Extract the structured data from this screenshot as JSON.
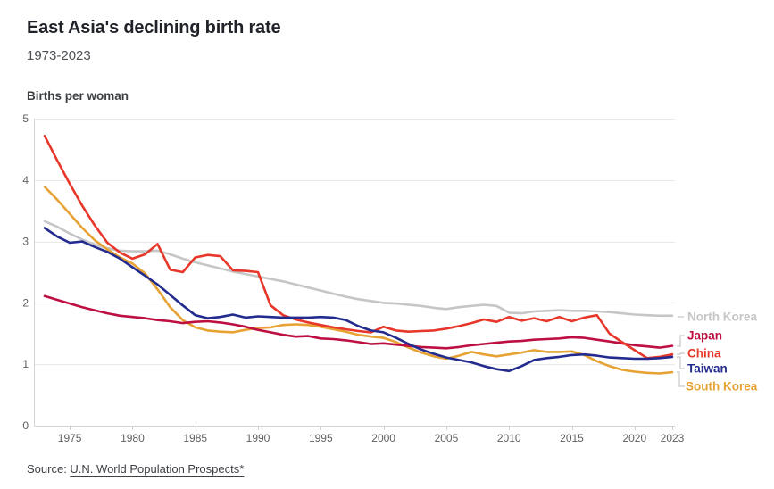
{
  "header": {
    "title": "East Asia's declining birth rate",
    "subtitle": "1973-2023"
  },
  "footer": {
    "source_prefix": "Source: ",
    "source_link": "U.N. World Population Prospects*"
  },
  "chart_data": {
    "type": "line",
    "title": "East Asia's declining birth rate",
    "subtitle": "1973-2023",
    "ylabel": "Births per woman",
    "xlabel": "",
    "xlim": [
      1973,
      2023
    ],
    "ylim": [
      0,
      5
    ],
    "y_ticks": [
      0,
      1,
      2,
      3,
      4,
      5
    ],
    "x_ticks": [
      1975,
      1980,
      1985,
      1990,
      1995,
      2000,
      2005,
      2010,
      2015,
      2020,
      2023
    ],
    "grid": "horizontal",
    "legend_position": "right-of-line-ends",
    "colors": {
      "grid": "#e9e9e9",
      "axis": "#d2d2d2",
      "tick_text": "#616161",
      "leader": "#c9c9c9"
    },
    "x": [
      1973,
      1974,
      1975,
      1976,
      1977,
      1978,
      1979,
      1980,
      1981,
      1982,
      1983,
      1984,
      1985,
      1986,
      1987,
      1988,
      1989,
      1990,
      1991,
      1992,
      1993,
      1994,
      1995,
      1996,
      1997,
      1998,
      1999,
      2000,
      2001,
      2002,
      2003,
      2004,
      2005,
      2006,
      2007,
      2008,
      2009,
      2010,
      2011,
      2012,
      2013,
      2014,
      2015,
      2016,
      2017,
      2018,
      2019,
      2020,
      2021,
      2022,
      2023
    ],
    "series": [
      {
        "name": "North Korea",
        "color": "#c6c6c6",
        "values": [
          3.33,
          3.24,
          3.13,
          3.03,
          2.95,
          2.89,
          2.85,
          2.84,
          2.84,
          2.85,
          2.79,
          2.72,
          2.66,
          2.61,
          2.56,
          2.51,
          2.47,
          2.43,
          2.39,
          2.35,
          2.3,
          2.25,
          2.2,
          2.15,
          2.1,
          2.06,
          2.03,
          2.0,
          1.99,
          1.97,
          1.95,
          1.92,
          1.9,
          1.93,
          1.95,
          1.97,
          1.95,
          1.84,
          1.83,
          1.86,
          1.87,
          1.88,
          1.87,
          1.87,
          1.86,
          1.85,
          1.83,
          1.81,
          1.8,
          1.79,
          1.79
        ]
      },
      {
        "name": "Japan",
        "color": "#bd1041",
        "values": [
          2.11,
          2.05,
          1.99,
          1.93,
          1.88,
          1.83,
          1.79,
          1.77,
          1.75,
          1.72,
          1.7,
          1.67,
          1.69,
          1.7,
          1.68,
          1.65,
          1.61,
          1.56,
          1.52,
          1.48,
          1.45,
          1.46,
          1.42,
          1.41,
          1.39,
          1.36,
          1.33,
          1.34,
          1.32,
          1.3,
          1.28,
          1.27,
          1.26,
          1.28,
          1.31,
          1.33,
          1.35,
          1.37,
          1.38,
          1.4,
          1.41,
          1.42,
          1.44,
          1.43,
          1.4,
          1.37,
          1.34,
          1.31,
          1.29,
          1.27,
          1.3
        ]
      },
      {
        "name": "China",
        "color": "#e7372a",
        "values": [
          4.72,
          4.32,
          3.94,
          3.58,
          3.26,
          2.98,
          2.82,
          2.72,
          2.79,
          2.96,
          2.54,
          2.5,
          2.74,
          2.78,
          2.76,
          2.53,
          2.52,
          2.5,
          1.96,
          1.8,
          1.73,
          1.68,
          1.64,
          1.6,
          1.57,
          1.54,
          1.52,
          1.61,
          1.55,
          1.53,
          1.54,
          1.55,
          1.58,
          1.62,
          1.67,
          1.73,
          1.69,
          1.77,
          1.71,
          1.75,
          1.7,
          1.77,
          1.7,
          1.76,
          1.8,
          1.5,
          1.36,
          1.23,
          1.1,
          1.12,
          1.16
        ]
      },
      {
        "name": "Taiwan",
        "color": "#232c8e",
        "values": [
          3.22,
          3.08,
          2.98,
          3.0,
          2.91,
          2.83,
          2.72,
          2.58,
          2.44,
          2.3,
          2.13,
          1.96,
          1.8,
          1.75,
          1.77,
          1.81,
          1.76,
          1.78,
          1.77,
          1.76,
          1.76,
          1.76,
          1.77,
          1.76,
          1.72,
          1.62,
          1.55,
          1.52,
          1.43,
          1.33,
          1.24,
          1.17,
          1.11,
          1.07,
          1.03,
          0.97,
          0.92,
          0.89,
          0.97,
          1.07,
          1.1,
          1.12,
          1.15,
          1.16,
          1.14,
          1.11,
          1.1,
          1.09,
          1.09,
          1.1,
          1.12
        ]
      },
      {
        "name": "South Korea",
        "color": "#e7a234",
        "values": [
          3.89,
          3.68,
          3.45,
          3.22,
          3.02,
          2.87,
          2.74,
          2.64,
          2.48,
          2.22,
          1.93,
          1.72,
          1.6,
          1.55,
          1.53,
          1.52,
          1.56,
          1.59,
          1.6,
          1.64,
          1.65,
          1.64,
          1.61,
          1.57,
          1.53,
          1.48,
          1.45,
          1.43,
          1.36,
          1.27,
          1.19,
          1.13,
          1.09,
          1.14,
          1.2,
          1.16,
          1.13,
          1.16,
          1.19,
          1.23,
          1.2,
          1.2,
          1.21,
          1.15,
          1.05,
          0.97,
          0.91,
          0.88,
          0.86,
          0.85,
          0.87
        ]
      }
    ]
  }
}
